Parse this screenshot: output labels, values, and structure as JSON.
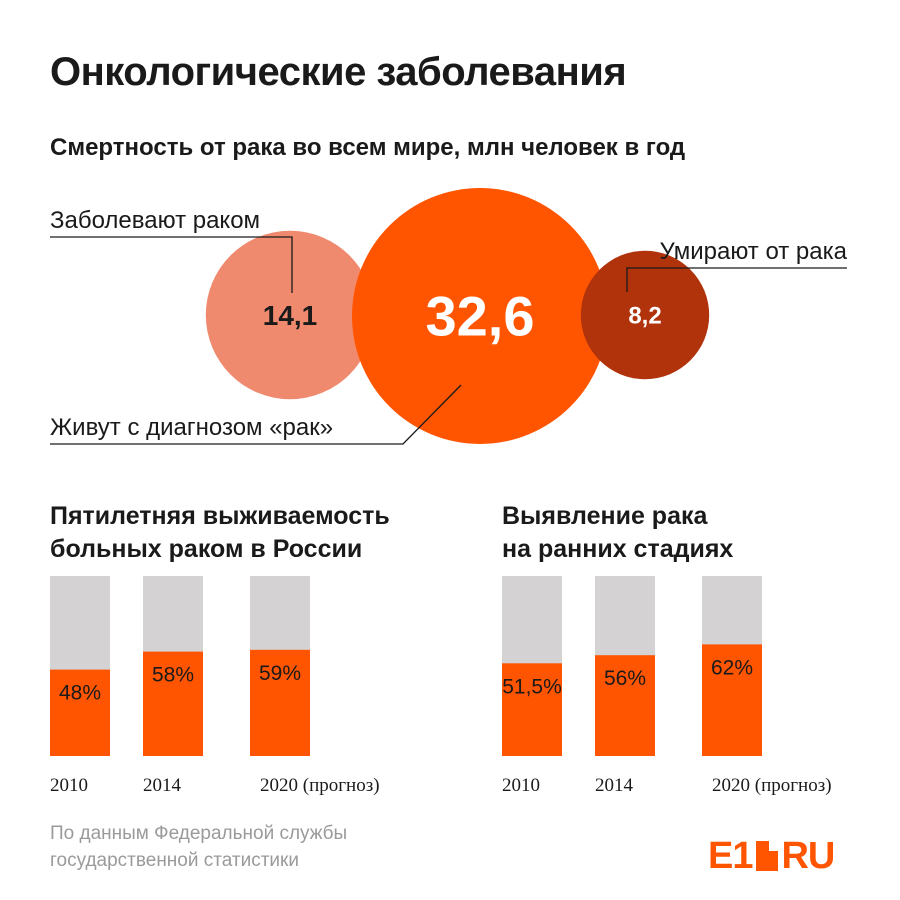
{
  "title": "Онкологические заболевания",
  "colors": {
    "orange": "#ff5500",
    "light_orange": "#f08a6e",
    "dark_red": "#b0330c",
    "grey": "#d4d2d3"
  },
  "chart_data": [
    {
      "type": "bubble",
      "title": "Смертность от рака во всем мире, млн человек в год",
      "bubbles": [
        {
          "label": "Заболевают раком",
          "value": 14.1,
          "display": "14,1",
          "color": "#f08a6e"
        },
        {
          "label": "Живут с диагнозом «рак»",
          "value": 32.6,
          "display": "32,6",
          "color": "#ff5500"
        },
        {
          "label": "Умирают от рака",
          "value": 8.2,
          "display": "8,2",
          "color": "#b0330c"
        }
      ]
    },
    {
      "type": "bar",
      "title": "Пятилетняя выживаемость больных раком в России",
      "title_lines": [
        "Пятилетняя выживаемость",
        "больных раком в России"
      ],
      "categories": [
        "2010",
        "2014",
        "2020 (прогноз)"
      ],
      "values": [
        48,
        58,
        59
      ],
      "labels": [
        "48%",
        "58%",
        "59%"
      ],
      "ylim": [
        0,
        100
      ]
    },
    {
      "type": "bar",
      "title": "Выявление рака на ранних стадиях",
      "title_lines": [
        "Выявление рака",
        "на ранних стадиях"
      ],
      "categories": [
        "2010",
        "2014",
        "2020 (прогноз)"
      ],
      "values": [
        51.5,
        56,
        62
      ],
      "labels": [
        "51,5%",
        "56%",
        "62%"
      ],
      "ylim": [
        0,
        100
      ]
    }
  ],
  "source_lines": [
    "По данным Федеральной службы",
    "государственной статистики"
  ],
  "logo": {
    "left": "E1",
    "right": "RU"
  }
}
